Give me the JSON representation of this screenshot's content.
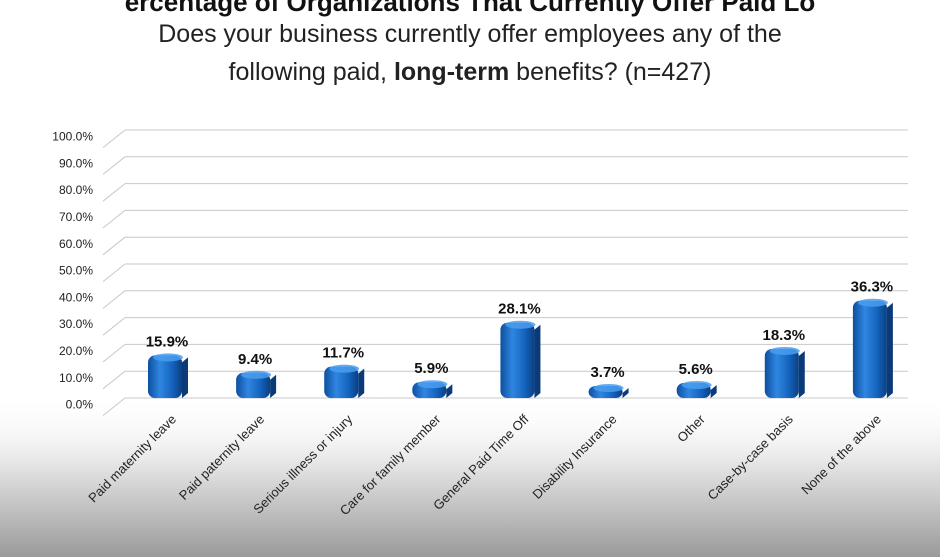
{
  "heading_cutoff": "ercentage of Organizations That Currently Offer Paid Lo",
  "chart_data": {
    "type": "bar",
    "title": {
      "line1": "Does your business currently offer employees any of the",
      "line2_prefix": "following paid, ",
      "line2_bold": "long-term",
      "line2_suffix": " benefits? (n=427)"
    },
    "categories": [
      "Paid maternity leave",
      "Paid paternity leave",
      "Serious illness or injury",
      "Care for family member",
      "General Paid Time Off",
      "Disability Insurance",
      "Other",
      "Case-by-case basis",
      "None of the above"
    ],
    "values": [
      15.9,
      9.4,
      11.7,
      5.9,
      28.1,
      3.7,
      5.6,
      18.3,
      36.3
    ],
    "value_labels": [
      "15.9%",
      "9.4%",
      "11.7%",
      "5.9%",
      "28.1%",
      "3.7%",
      "5.6%",
      "18.3%",
      "36.3%"
    ],
    "y_ticks": [
      "0.0%",
      "10.0%",
      "20.0%",
      "30.0%",
      "40.0%",
      "50.0%",
      "60.0%",
      "70.0%",
      "80.0%",
      "90.0%",
      "100.0%"
    ],
    "ylim": [
      0,
      100
    ],
    "grid": true,
    "xlabel": "",
    "ylabel": "",
    "bar_color": "#1565C0"
  }
}
